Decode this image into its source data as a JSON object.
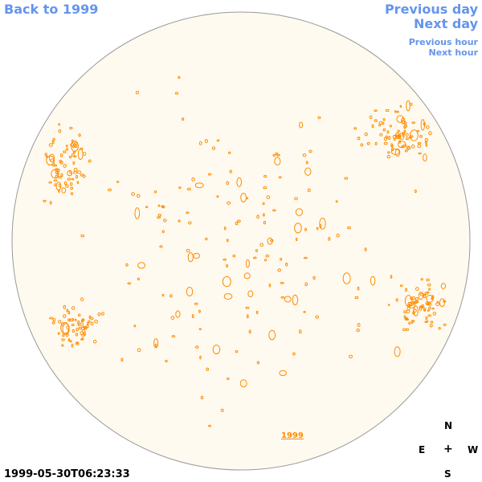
{
  "nav": {
    "back_label": "Back to 1999",
    "previous_day_label": "Previous day",
    "next_day_label": "Next day",
    "previous_hour_label": "Previous hour",
    "next_hour_label": "Next hour"
  },
  "sun": {
    "disk_color": "#fffaf0",
    "contour_color": "#ff8c00",
    "outline_color": "#999999"
  },
  "year_link_label": "1999",
  "compass": {
    "north": "N",
    "east": "E",
    "center": "+",
    "west": "W",
    "south": "S"
  },
  "timestamp": "1999-05-30T06:23:33"
}
